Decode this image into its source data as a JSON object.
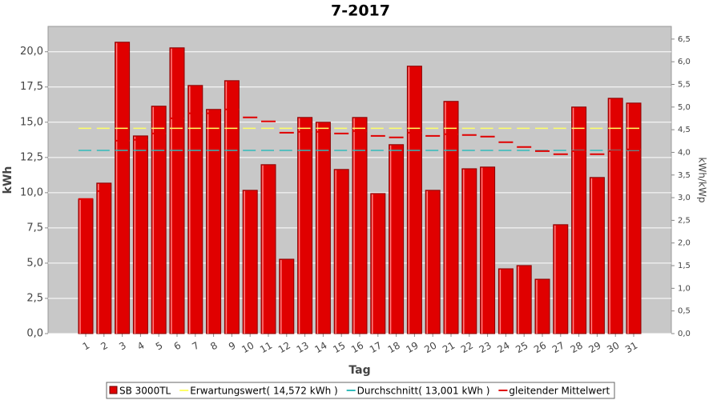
{
  "chart_data": {
    "type": "bar",
    "title": "7-2017",
    "x_label": "Tag",
    "y_label": "kWh",
    "y2_label": "kWh/kWp",
    "categories": [
      "1",
      "2",
      "3",
      "4",
      "5",
      "6",
      "7",
      "8",
      "9",
      "10",
      "11",
      "12",
      "13",
      "14",
      "15",
      "16",
      "17",
      "18",
      "19",
      "20",
      "21",
      "22",
      "23",
      "24",
      "25",
      "26",
      "27",
      "28",
      "29",
      "30",
      "31"
    ],
    "series": [
      {
        "name": "SB 3000TL",
        "kind": "bar",
        "color": "#e00000",
        "values": [
          9.55,
          10.68,
          20.68,
          14.03,
          16.14,
          20.28,
          17.61,
          15.91,
          17.95,
          10.17,
          11.99,
          5.28,
          15.34,
          15.0,
          11.65,
          15.34,
          9.94,
          13.41,
          18.98,
          10.17,
          16.48,
          11.7,
          11.82,
          4.6,
          4.83,
          3.86,
          7.73,
          16.08,
          11.08,
          16.7,
          16.36
        ]
      },
      {
        "name": "Erwartungswert( 14,572 kWh )",
        "kind": "hline",
        "color": "#ffff66",
        "value": 14.572
      },
      {
        "name": "Durchschnitt( 13,001 kWh )",
        "kind": "hline",
        "color": "#33bbbb",
        "value": 13.001
      },
      {
        "name": "gleitender Mittelwert",
        "kind": "steps",
        "color": "#e00000",
        "values": [
          9.55,
          10.11,
          13.69,
          13.75,
          14.2,
          15.28,
          15.63,
          15.63,
          15.91,
          15.34,
          15.06,
          14.26,
          14.32,
          14.32,
          14.2,
          14.38,
          14.03,
          13.92,
          14.26,
          14.03,
          14.15,
          14.09,
          13.98,
          13.58,
          13.24,
          12.95,
          12.73,
          12.95,
          12.73,
          12.95,
          13.07
        ]
      }
    ],
    "ylim": [
      0,
      21.8
    ],
    "yticks": [
      {
        "value": 0,
        "label": "0,0"
      },
      {
        "value": 2.5,
        "label": "2,5"
      },
      {
        "value": 5,
        "label": "5,0"
      },
      {
        "value": 7.5,
        "label": "7,5"
      },
      {
        "value": 10,
        "label": "10,0"
      },
      {
        "value": 12.5,
        "label": "12,5"
      },
      {
        "value": 15,
        "label": "15,0"
      },
      {
        "value": 17.5,
        "label": "17,5"
      },
      {
        "value": 20,
        "label": "20,0"
      }
    ],
    "y2lim": [
      0,
      6.78
    ],
    "y2ticks": [
      {
        "value": 0,
        "label": "0,0"
      },
      {
        "value": 0.5,
        "label": "0,5"
      },
      {
        "value": 1,
        "label": "1,0"
      },
      {
        "value": 1.5,
        "label": "1,5"
      },
      {
        "value": 2,
        "label": "2,0"
      },
      {
        "value": 2.5,
        "label": "2,5"
      },
      {
        "value": 3,
        "label": "3,0"
      },
      {
        "value": 3.5,
        "label": "3,5"
      },
      {
        "value": 4,
        "label": "4,0"
      },
      {
        "value": 4.5,
        "label": "4,5"
      },
      {
        "value": 5,
        "label": "5,0"
      },
      {
        "value": 5.5,
        "label": "5,5"
      },
      {
        "value": 6,
        "label": "6,0"
      },
      {
        "value": 6.5,
        "label": "6,5"
      }
    ],
    "grid": true
  }
}
